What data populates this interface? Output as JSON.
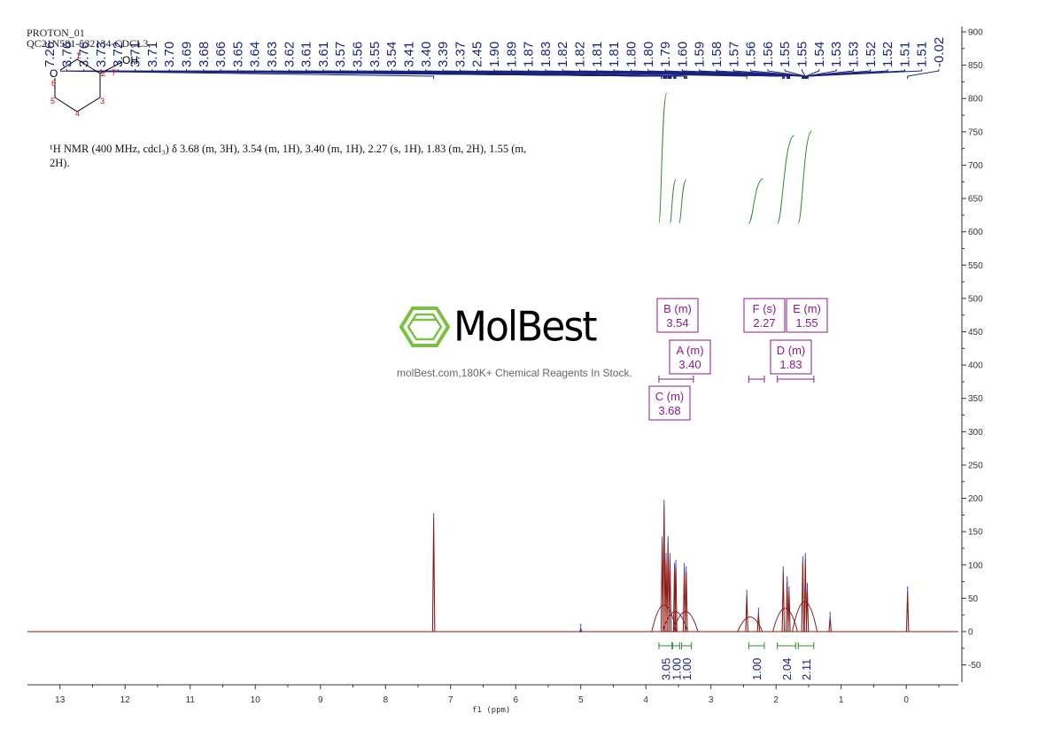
{
  "header": {
    "line1": "PROTON_01",
    "line2": "QC21N581-532134-CDCL3"
  },
  "nmr_description": "¹H NMR (400 MHz, cdcl₃) δ 3.68 (m, 3H), 3.54 (m, 1H), 3.40 (m, 1H), 2.27 (s, 1H), 1.83 (m, 2H), 1.55 (m, 2H).",
  "molecule": {
    "atoms": [
      "O",
      "OH"
    ],
    "numbers": [
      "1",
      "2",
      "3",
      "4",
      "5",
      "6",
      "7"
    ]
  },
  "watermark": {
    "brand": "MolBest",
    "tagline": "molBest.com,180K+ Chemical Reagents In Stock.",
    "color": "#7ac143"
  },
  "chart_data": {
    "type": "line",
    "xlabel": "f1 (ppm)",
    "ylabel": "",
    "xlim": [
      13.5,
      -0.8
    ],
    "ylim": [
      -80,
      900
    ],
    "x_ticks": [
      13,
      12,
      11,
      10,
      9,
      8,
      7,
      6,
      5,
      4,
      3,
      2,
      1,
      0
    ],
    "y_ticks": [
      -50,
      0,
      50,
      100,
      150,
      200,
      250,
      300,
      350,
      400,
      450,
      500,
      550,
      600,
      650,
      700,
      750,
      800,
      850,
      900
    ],
    "peak_labels": [
      "7.26",
      "3.76",
      "3.76",
      "3.73",
      "3.72",
      "3.71",
      "3.71",
      "3.70",
      "3.69",
      "3.68",
      "3.66",
      "3.65",
      "3.64",
      "3.63",
      "3.62",
      "3.61",
      "3.61",
      "3.57",
      "3.56",
      "3.55",
      "3.54",
      "3.41",
      "3.40",
      "3.39",
      "3.37",
      "2.45",
      "1.90",
      "1.89",
      "1.87",
      "1.83",
      "1.82",
      "1.82",
      "1.81",
      "1.81",
      "1.80",
      "1.80",
      "1.79",
      "1.60",
      "1.59",
      "1.58",
      "1.57",
      "1.56",
      "1.56",
      "1.55",
      "1.55",
      "1.54",
      "1.53",
      "1.53",
      "1.52",
      "1.52",
      "1.51",
      "1.51",
      "-0.02"
    ],
    "spectrum_peaks": [
      {
        "ppm": 7.26,
        "height": 170
      },
      {
        "ppm": 5.0,
        "height": 4
      },
      {
        "ppm": 3.75,
        "height": 135
      },
      {
        "ppm": 3.72,
        "height": 190
      },
      {
        "ppm": 3.69,
        "height": 110
      },
      {
        "ppm": 3.66,
        "height": 135
      },
      {
        "ppm": 3.63,
        "height": 110
      },
      {
        "ppm": 3.56,
        "height": 95
      },
      {
        "ppm": 3.54,
        "height": 100
      },
      {
        "ppm": 3.41,
        "height": 95
      },
      {
        "ppm": 3.38,
        "height": 90
      },
      {
        "ppm": 2.45,
        "height": 55
      },
      {
        "ppm": 2.27,
        "height": 28
      },
      {
        "ppm": 1.89,
        "height": 90
      },
      {
        "ppm": 1.83,
        "height": 75
      },
      {
        "ppm": 1.8,
        "height": 60
      },
      {
        "ppm": 1.59,
        "height": 105
      },
      {
        "ppm": 1.55,
        "height": 110
      },
      {
        "ppm": 1.52,
        "height": 65
      },
      {
        "ppm": 1.17,
        "height": 22
      },
      {
        "ppm": -0.02,
        "height": 60
      }
    ],
    "multiplets": [
      {
        "id": "B",
        "type": "m",
        "shift": "3.54"
      },
      {
        "id": "A",
        "type": "m",
        "shift": "3.40"
      },
      {
        "id": "C",
        "type": "m",
        "shift": "3.68"
      },
      {
        "id": "F",
        "type": "s",
        "shift": "2.27"
      },
      {
        "id": "E",
        "type": "m",
        "shift": "1.55"
      },
      {
        "id": "D",
        "type": "m",
        "shift": "1.83"
      }
    ],
    "integrals": [
      {
        "from": 3.8,
        "to": 3.6,
        "value": "3.05"
      },
      {
        "from": 3.59,
        "to": 3.48,
        "value": "1.00"
      },
      {
        "from": 3.45,
        "to": 3.3,
        "value": "1.00"
      },
      {
        "from": 2.42,
        "to": 2.18,
        "value": "1.00"
      },
      {
        "from": 1.98,
        "to": 1.7,
        "value": "2.04"
      },
      {
        "from": 1.66,
        "to": 1.42,
        "value": "2.11"
      }
    ],
    "spectrum_color": "#8b1a1a",
    "label_color": "#1a237e",
    "integral_color": "#2e8b2e",
    "multiplet_color": "#8b1a8b"
  }
}
